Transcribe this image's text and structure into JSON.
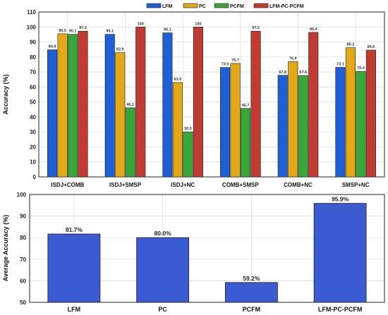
{
  "chart_data": [
    {
      "type": "bar",
      "categories": [
        "ISDJ+COMB",
        "ISDJ+SMSP",
        "ISDJ+NC",
        "COMB+SMSP",
        "COMB+NC",
        "SMSP+NC"
      ],
      "series": [
        {
          "name": "LFM",
          "color": "#1f5fd6",
          "values": [
            84.8,
            95.1,
            96.1,
            73.0,
            67.8,
            73.1
          ],
          "labels": [
            "84.8",
            "95.1",
            "96.1",
            "73.0",
            "67.8",
            "73.1"
          ]
        },
        {
          "name": "PC",
          "color": "#e2a817",
          "values": [
            95.5,
            82.9,
            63.0,
            75.7,
            76.9,
            86.2
          ],
          "labels": [
            "95.5",
            "82.9",
            "63.0",
            "75.7",
            "76.9",
            "86.2"
          ]
        },
        {
          "name": "PCFM",
          "color": "#3aa63a",
          "values": [
            95.1,
            46.1,
            30.0,
            45.7,
            67.6,
            70.4
          ],
          "labels": [
            "95.1",
            "46.1",
            "30.0",
            "45.7",
            "67.6",
            "70.4"
          ]
        },
        {
          "name": "LFM-PC-PCFM",
          "color": "#c03b32",
          "values": [
            97.2,
            100,
            100,
            97.2,
            96.4,
            84.6
          ],
          "labels": [
            "97.2",
            "100",
            "100",
            "97.2",
            "96.4",
            "84.6"
          ]
        }
      ],
      "ylabel": "Accuracy (%)",
      "ylim": [
        0,
        110
      ],
      "yticks": [
        "0",
        "10",
        "20",
        "30",
        "40",
        "50",
        "60",
        "70",
        "80",
        "90",
        "100",
        "110"
      ],
      "legend_position": "top-center",
      "grid": true
    },
    {
      "type": "bar",
      "categories": [
        "LFM",
        "PC",
        "PCFM",
        "LFM-PC-PCFM"
      ],
      "values": [
        81.7,
        80.0,
        59.2,
        95.9
      ],
      "labels": [
        "81.7%",
        "80.0%",
        "59.2%",
        "95.9%"
      ],
      "color": "#3a5bd1",
      "ylabel": "Average Accuracy (%)",
      "ylim": [
        50,
        100
      ],
      "yticks": [
        "50",
        "60",
        "70",
        "80",
        "90",
        "100"
      ],
      "grid": true
    }
  ]
}
